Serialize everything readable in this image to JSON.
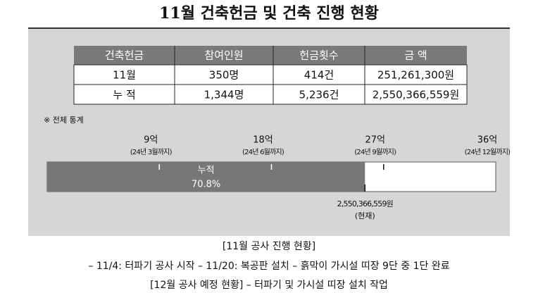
{
  "header": {
    "title": "11월 건축헌금 및 건축 진행 현황"
  },
  "table": {
    "columns": [
      "건축헌금",
      "참여인원",
      "헌금횟수",
      "금  액"
    ],
    "rows": [
      [
        "11월",
        "350명",
        "414건",
        "251,261,300원"
      ],
      [
        "누 적",
        "1,344명",
        "5,236건",
        "2,550,366,559원"
      ]
    ]
  },
  "note": "※ 전체 통계",
  "progress": {
    "xlim": [
      0,
      3600000000
    ],
    "xticks": [
      {
        "value": 900000000,
        "label": "9억"
      },
      {
        "value": 1800000000,
        "label": "18억"
      },
      {
        "value": 2700000000,
        "label": "27억"
      },
      {
        "value": 3600000000,
        "label": "36억"
      }
    ],
    "tick_notes": [
      "(24년 3월까지)",
      "(24년 6월까지)",
      "(24년 9월까지)",
      "(24년 12월까지)"
    ],
    "fill_label": "누적",
    "percent_label": "70.8%",
    "value": 2550366559,
    "value_label": "2,550,366,559원",
    "value_note": "(현재)"
  },
  "footer": {
    "lines": [
      "[11월 공사 진행 현황]",
      "– 11/4: 터파기 공사 시작   – 11/20: 복공판 설치   – 흙막이 가시설 띠장 9단 중 1단 완료",
      "[12월 공사 예정 현황] – 터파기 및 가시설 띠장 설치 작업"
    ]
  }
}
